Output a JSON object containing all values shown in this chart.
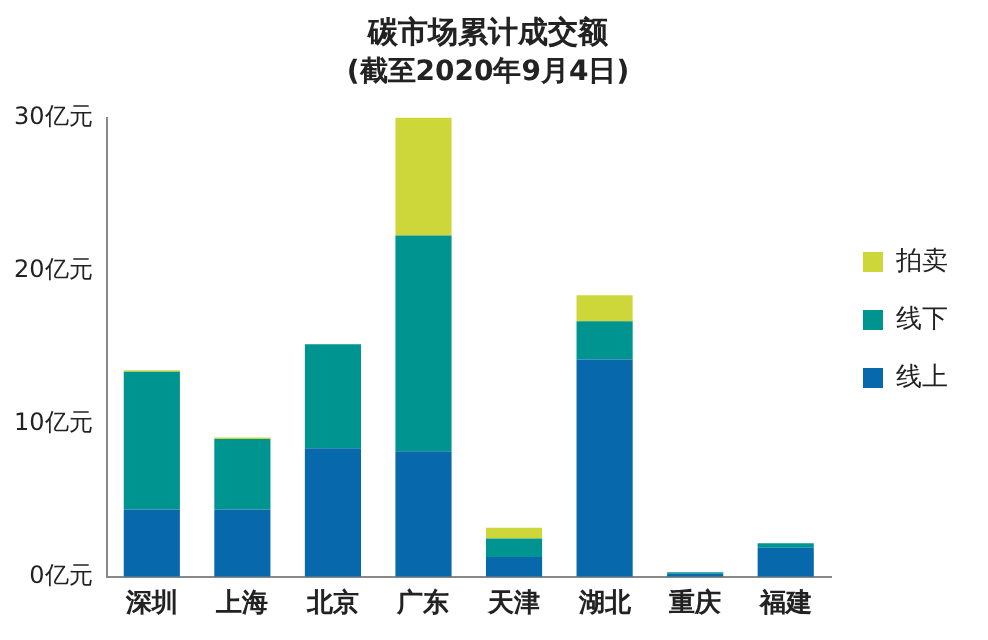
{
  "chart_data": {
    "type": "bar",
    "title": "碳市场累计成交额",
    "subtitle": "(截至2020年9月4日)",
    "categories": [
      "深圳",
      "上海",
      "北京",
      "广东",
      "天津",
      "湖北",
      "重庆",
      "福建"
    ],
    "stacked": true,
    "series": [
      {
        "name": "线上",
        "color": "#0868ac",
        "values": [
          4.4,
          4.4,
          8.4,
          8.2,
          1.3,
          14.2,
          0.2,
          1.9
        ]
      },
      {
        "name": "线下",
        "color": "#009490",
        "values": [
          9.0,
          4.6,
          6.8,
          14.1,
          1.2,
          2.5,
          0.1,
          0.3
        ]
      },
      {
        "name": "拍卖",
        "color": "#cdd73a",
        "values": [
          0.1,
          0.1,
          null,
          7.7,
          0.7,
          1.7,
          null,
          null
        ]
      }
    ],
    "ylim": [
      0,
      30
    ],
    "yticks": [
      {
        "value": 0,
        "label": "0亿元"
      },
      {
        "value": 10,
        "label": "10亿元"
      },
      {
        "value": 20,
        "label": "20亿元"
      },
      {
        "value": 30,
        "label": "30亿元"
      }
    ],
    "grid": false,
    "legend": "right"
  }
}
